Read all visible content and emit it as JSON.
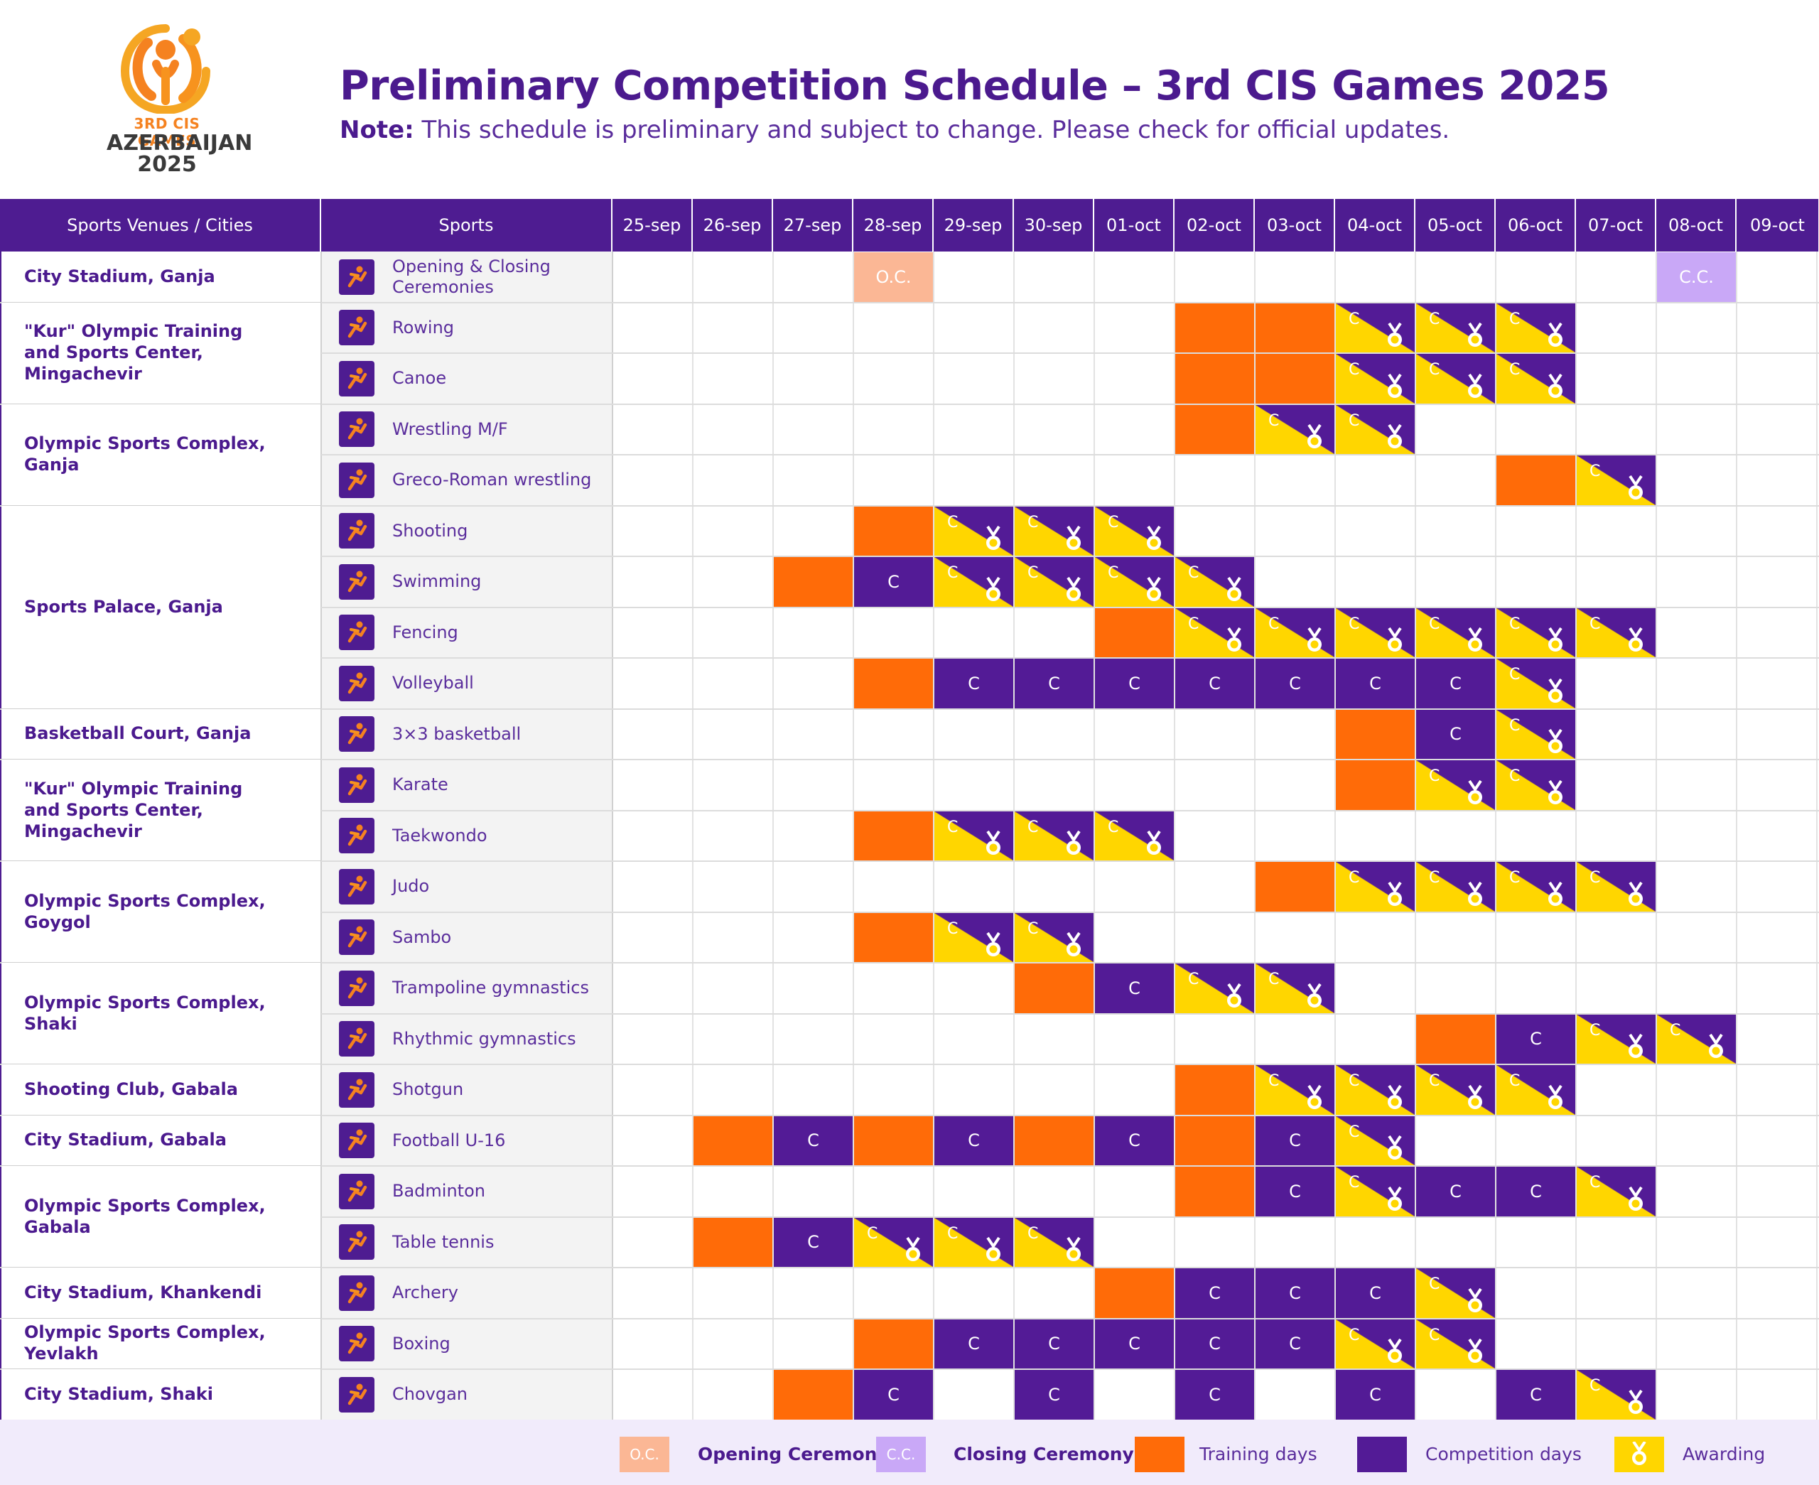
{
  "header": {
    "logo": {
      "line1": "3RD CIS GAMES",
      "line2": "AZERBAIJAN",
      "line3": "2025"
    },
    "title": "Preliminary Competition Schedule – 3rd CIS Games 2025",
    "note_label": "Note:",
    "note_text": " This schedule is preliminary and subject to change. Please check for official updates."
  },
  "columns": {
    "venue": "Sports Venues / Cities",
    "sport": "Sports",
    "dates": [
      "25-sep",
      "26-sep",
      "27-sep",
      "28-sep",
      "29-sep",
      "30-sep",
      "01-oct",
      "02-oct",
      "03-oct",
      "04-oct",
      "05-oct",
      "06-oct",
      "07-oct",
      "08-oct",
      "09-oct"
    ]
  },
  "labels": {
    "competition": "C",
    "opening": "O.C.",
    "closing": "C.C."
  },
  "colors": {
    "purple": "#531b96",
    "orange": "#ff6b08",
    "yellow": "#ffd600",
    "oc": "#fbb795",
    "cc": "#c9a8f7"
  },
  "venues": [
    {
      "name": "City Stadium, Ganja",
      "rows": 1
    },
    {
      "name": "\"Kur\" Olympic Training\nand Sports Center,\nMingachevir",
      "rows": 2
    },
    {
      "name": "Olympic Sports Complex, Ganja",
      "rows": 2
    },
    {
      "name": "Sports Palace, Ganja",
      "rows": 4
    },
    {
      "name": "Basketball Court, Ganja",
      "rows": 1
    },
    {
      "name": "\"Kur\" Olympic Training\nand Sports Center,\nMingachevir",
      "rows": 2
    },
    {
      "name": "Olympic Sports Complex,\nGoygol",
      "rows": 2
    },
    {
      "name": "Olympic Sports Complex, Shaki",
      "rows": 2
    },
    {
      "name": "Shooting Club, Gabala",
      "rows": 1
    },
    {
      "name": "City Stadium, Gabala",
      "rows": 1
    },
    {
      "name": "Olympic Sports Complex,\nGabala",
      "rows": 2
    },
    {
      "name": "City Stadium, Khankendi",
      "rows": 1
    },
    {
      "name": "Olympic  Sports Complex, Yevlakh",
      "rows": 1
    },
    {
      "name": "City Stadium, Shaki",
      "rows": 1
    }
  ],
  "sports": [
    {
      "name": "Opening & Closing\nCeremonies",
      "icon": "fireworks-icon",
      "days": [
        "",
        "",
        "",
        "O",
        "",
        "",
        "",
        "",
        "",
        "",
        "",
        "",
        "",
        "X",
        ""
      ]
    },
    {
      "name": "Rowing",
      "icon": "rowing-icon",
      "days": [
        "",
        "",
        "",
        "",
        "",
        "",
        "",
        "T",
        "T",
        "A",
        "A",
        "A",
        "",
        "",
        ""
      ]
    },
    {
      "name": "Canoe",
      "icon": "canoe-icon",
      "days": [
        "",
        "",
        "",
        "",
        "",
        "",
        "",
        "T",
        "T",
        "A",
        "A",
        "A",
        "",
        "",
        ""
      ]
    },
    {
      "name": "Wrestling M/F",
      "icon": "wrestling-icon",
      "days": [
        "",
        "",
        "",
        "",
        "",
        "",
        "",
        "T",
        "A",
        "A",
        "",
        "",
        "",
        "",
        ""
      ]
    },
    {
      "name": "Greco-Roman wrestling",
      "icon": "greco-roman-icon",
      "days": [
        "",
        "",
        "",
        "",
        "",
        "",
        "",
        "",
        "",
        "",
        "",
        "T",
        "A",
        "",
        ""
      ]
    },
    {
      "name": "Shooting",
      "icon": "shooting-icon",
      "days": [
        "",
        "",
        "",
        "T",
        "A",
        "A",
        "A",
        "",
        "",
        "",
        "",
        "",
        "",
        "",
        ""
      ]
    },
    {
      "name": "Swimming",
      "icon": "swimming-icon",
      "days": [
        "",
        "",
        "T",
        "C",
        "A",
        "A",
        "A",
        "A",
        "",
        "",
        "",
        "",
        "",
        "",
        ""
      ]
    },
    {
      "name": "Fencing",
      "icon": "fencing-icon",
      "days": [
        "",
        "",
        "",
        "",
        "",
        "",
        "T",
        "A",
        "A",
        "A",
        "A",
        "A",
        "A",
        "",
        ""
      ]
    },
    {
      "name": "Volleyball",
      "icon": "volleyball-icon",
      "days": [
        "",
        "",
        "",
        "T",
        "C",
        "C",
        "C",
        "C",
        "C",
        "C",
        "C",
        "A",
        "",
        "",
        ""
      ]
    },
    {
      "name": "3×3 basketball",
      "icon": "basketball-icon",
      "days": [
        "",
        "",
        "",
        "",
        "",
        "",
        "",
        "",
        "",
        "T",
        "C",
        "A",
        "",
        "",
        ""
      ]
    },
    {
      "name": "Karate",
      "icon": "karate-icon",
      "days": [
        "",
        "",
        "",
        "",
        "",
        "",
        "",
        "",
        "",
        "T",
        "A",
        "A",
        "",
        "",
        ""
      ]
    },
    {
      "name": "Taekwondo",
      "icon": "taekwondo-icon",
      "days": [
        "",
        "",
        "",
        "T",
        "A",
        "A",
        "A",
        "",
        "",
        "",
        "",
        "",
        "",
        "",
        ""
      ]
    },
    {
      "name": "Judo",
      "icon": "judo-icon",
      "days": [
        "",
        "",
        "",
        "",
        "",
        "",
        "",
        "",
        "T",
        "A",
        "A",
        "A",
        "A",
        "",
        ""
      ]
    },
    {
      "name": "Sambo",
      "icon": "sambo-icon",
      "days": [
        "",
        "",
        "",
        "T",
        "A",
        "A",
        "",
        "",
        "",
        "",
        "",
        "",
        "",
        "",
        ""
      ]
    },
    {
      "name": "Trampoline gymnastics",
      "icon": "trampoline-icon",
      "days": [
        "",
        "",
        "",
        "",
        "",
        "T",
        "C",
        "A",
        "A",
        "",
        "",
        "",
        "",
        "",
        ""
      ]
    },
    {
      "name": "Rhythmic gymnastics",
      "icon": "rhythmic-gymnastics-icon",
      "days": [
        "",
        "",
        "",
        "",
        "",
        "",
        "",
        "",
        "",
        "",
        "T",
        "C",
        "A",
        "A",
        ""
      ]
    },
    {
      "name": "Shotgun",
      "icon": "shotgun-icon",
      "days": [
        "",
        "",
        "",
        "",
        "",
        "",
        "",
        "T",
        "A",
        "A",
        "A",
        "A",
        "",
        "",
        ""
      ]
    },
    {
      "name": "Football U-16",
      "icon": "football-icon",
      "days": [
        "",
        "T",
        "C",
        "T",
        "C",
        "T",
        "C",
        "T",
        "C",
        "A",
        "",
        "",
        "",
        "",
        ""
      ]
    },
    {
      "name": "Badminton",
      "icon": "badminton-icon",
      "days": [
        "",
        "",
        "",
        "",
        "",
        "",
        "",
        "T",
        "C",
        "A",
        "C",
        "C",
        "A",
        "",
        ""
      ]
    },
    {
      "name": "Table tennis",
      "icon": "table-tennis-icon",
      "days": [
        "",
        "T",
        "C",
        "A",
        "A",
        "A",
        "",
        "",
        "",
        "",
        "",
        "",
        "",
        "",
        ""
      ]
    },
    {
      "name": "Archery",
      "icon": "archery-icon",
      "days": [
        "",
        "",
        "",
        "",
        "",
        "",
        "T",
        "C",
        "C",
        "C",
        "A",
        "",
        "",
        "",
        ""
      ]
    },
    {
      "name": "Boxing",
      "icon": "boxing-icon",
      "days": [
        "",
        "",
        "",
        "T",
        "C",
        "C",
        "C",
        "C",
        "C",
        "A",
        "A",
        "",
        "",
        "",
        ""
      ]
    },
    {
      "name": "Chovgan",
      "icon": "chovgan-icon",
      "days": [
        "",
        "",
        "T",
        "C",
        "",
        "C",
        "",
        "C",
        "",
        "C",
        "",
        "C",
        "A",
        "",
        ""
      ]
    }
  ],
  "legend": {
    "oc_label": "Opening Ceremony",
    "cc_label": "Closing Ceremony",
    "training": "Training days",
    "competition": "Competition days",
    "awarding": "Awarding"
  }
}
